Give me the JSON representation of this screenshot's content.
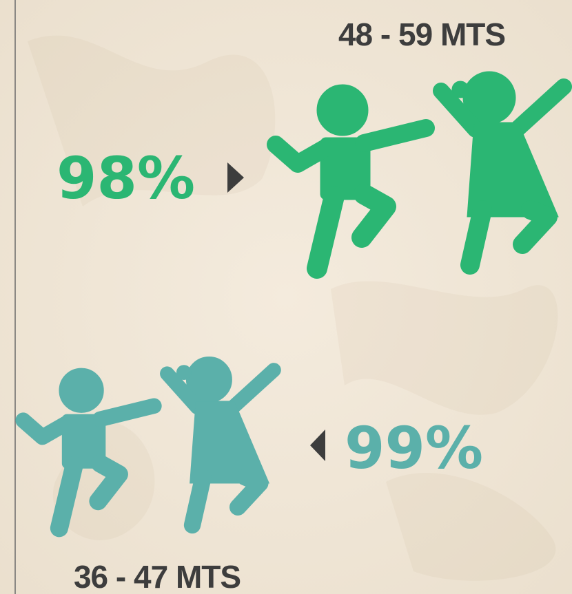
{
  "groups": [
    {
      "range": "48 - 59 MTS",
      "percent": "98%"
    },
    {
      "range": "36 - 47 MTS",
      "percent": "99%"
    }
  ]
}
